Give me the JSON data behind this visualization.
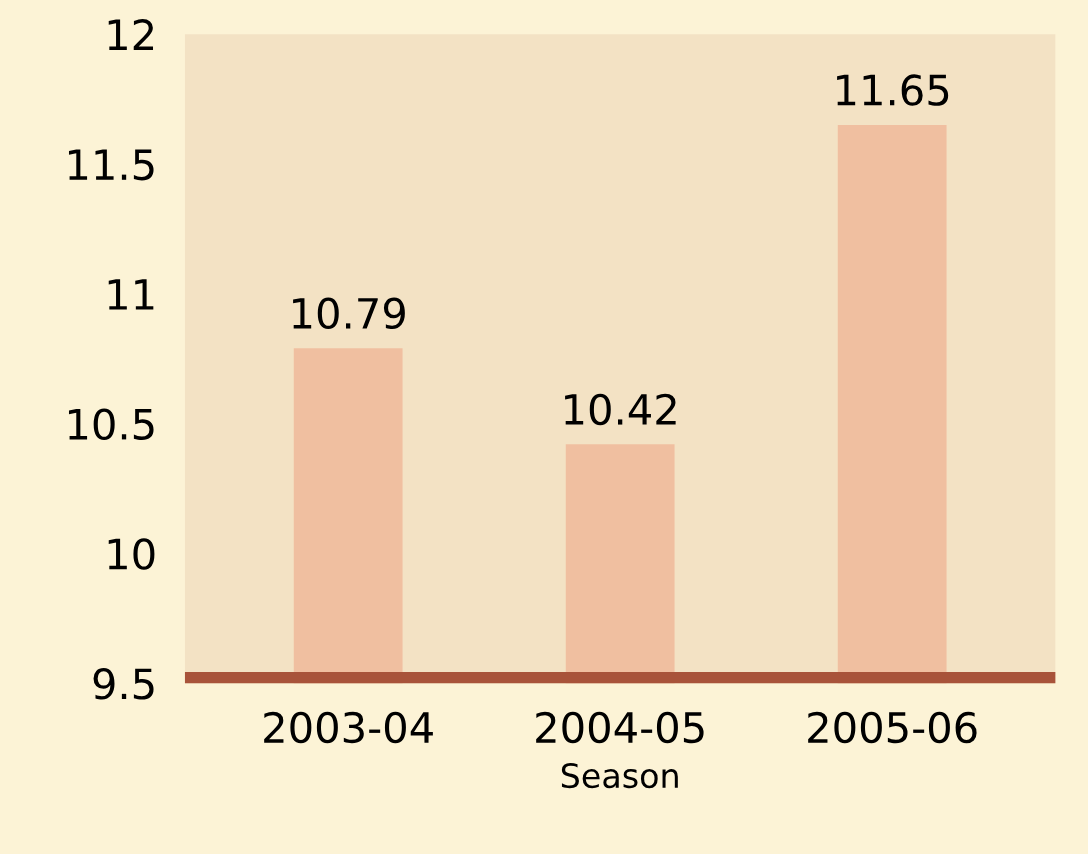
{
  "chart_data": {
    "type": "bar",
    "xlabel": "Season",
    "categories": [
      "2003-04",
      "2004-05",
      "2005-06"
    ],
    "values": [
      10.79,
      10.42,
      11.65
    ],
    "color": "#f0bfa0",
    "ylim": [
      9.5,
      12
    ],
    "yticks": [
      9.5,
      10,
      10.5,
      11,
      11.5,
      12
    ],
    "data_labels": true,
    "grid": false
  }
}
